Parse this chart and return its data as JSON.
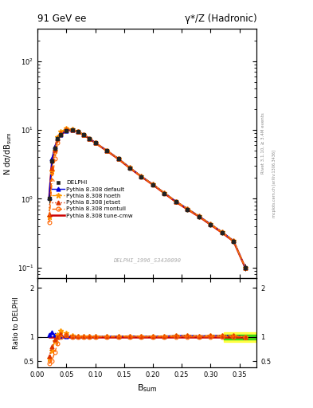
{
  "title_left": "91 GeV ee",
  "title_right": "γ*/Z (Hadronic)",
  "ylabel_main": "N dσ/dB$_{\\rm sum}$",
  "ylabel_ratio": "Ratio to DELPHI",
  "xlabel": "B$_{\\rm sum}$",
  "watermark": "DELPHI_1996_S3430090",
  "rivet_label": "Rivet 3.1.10, ≥ 3.4M events",
  "mcplots_label": "mcplots.cern.ch [arXiv:1306.3436]",
  "bsum_values": [
    0.02,
    0.025,
    0.03,
    0.035,
    0.04,
    0.05,
    0.06,
    0.07,
    0.08,
    0.09,
    0.1,
    0.12,
    0.14,
    0.16,
    0.18,
    0.2,
    0.22,
    0.24,
    0.26,
    0.28,
    0.3,
    0.32,
    0.34,
    0.36
  ],
  "delphi_y": [
    1.0,
    3.5,
    5.5,
    7.5,
    8.5,
    9.8,
    10.0,
    9.5,
    8.5,
    7.5,
    6.5,
    5.0,
    3.8,
    2.8,
    2.1,
    1.6,
    1.2,
    0.9,
    0.7,
    0.55,
    0.42,
    0.32,
    0.24,
    0.1
  ],
  "delphi_err": [
    0.15,
    0.35,
    0.45,
    0.55,
    0.55,
    0.45,
    0.45,
    0.45,
    0.45,
    0.38,
    0.38,
    0.28,
    0.28,
    0.18,
    0.13,
    0.11,
    0.09,
    0.07,
    0.055,
    0.045,
    0.035,
    0.028,
    0.022,
    0.012
  ],
  "default_y": [
    1.05,
    3.8,
    5.7,
    7.6,
    8.6,
    9.9,
    10.1,
    9.6,
    8.6,
    7.55,
    6.55,
    5.05,
    3.85,
    2.85,
    2.12,
    1.62,
    1.22,
    0.92,
    0.72,
    0.56,
    0.43,
    0.33,
    0.245,
    0.1
  ],
  "hoeth_y": [
    0.55,
    2.5,
    5.0,
    7.8,
    9.5,
    10.5,
    10.2,
    9.6,
    8.6,
    7.55,
    6.55,
    5.05,
    3.85,
    2.85,
    2.12,
    1.62,
    1.22,
    0.92,
    0.72,
    0.56,
    0.43,
    0.33,
    0.245,
    0.1
  ],
  "jetset_y": [
    0.6,
    2.8,
    5.2,
    7.5,
    9.0,
    10.2,
    10.1,
    9.6,
    8.6,
    7.55,
    6.55,
    5.05,
    3.85,
    2.85,
    2.12,
    1.62,
    1.22,
    0.92,
    0.72,
    0.56,
    0.43,
    0.33,
    0.245,
    0.1
  ],
  "montull_y": [
    0.45,
    1.8,
    3.8,
    6.5,
    8.5,
    10.0,
    10.0,
    9.5,
    8.5,
    7.5,
    6.5,
    5.0,
    3.8,
    2.8,
    2.1,
    1.6,
    1.2,
    0.9,
    0.7,
    0.55,
    0.42,
    0.32,
    0.24,
    0.1
  ],
  "tunecmw_y": [
    1.0,
    3.5,
    5.5,
    7.5,
    8.5,
    9.8,
    10.0,
    9.5,
    8.5,
    7.5,
    6.5,
    5.0,
    3.8,
    2.8,
    2.1,
    1.6,
    1.2,
    0.9,
    0.7,
    0.55,
    0.42,
    0.32,
    0.24,
    0.1
  ],
  "colors": {
    "delphi": "#222222",
    "default": "#0000dd",
    "hoeth": "#ff9900",
    "jetset": "#dd3300",
    "montull": "#ff6600",
    "tunecmw": "#cc0000"
  },
  "ylim_main": [
    0.07,
    300
  ],
  "xlim": [
    0.0,
    0.38
  ],
  "ratio_ylim": [
    0.38,
    2.2
  ],
  "ratio_yticks": [
    0.5,
    1.0,
    2.0
  ],
  "ratio_band_yellow": [
    0.9,
    1.1
  ],
  "ratio_band_green": [
    0.95,
    1.05
  ]
}
